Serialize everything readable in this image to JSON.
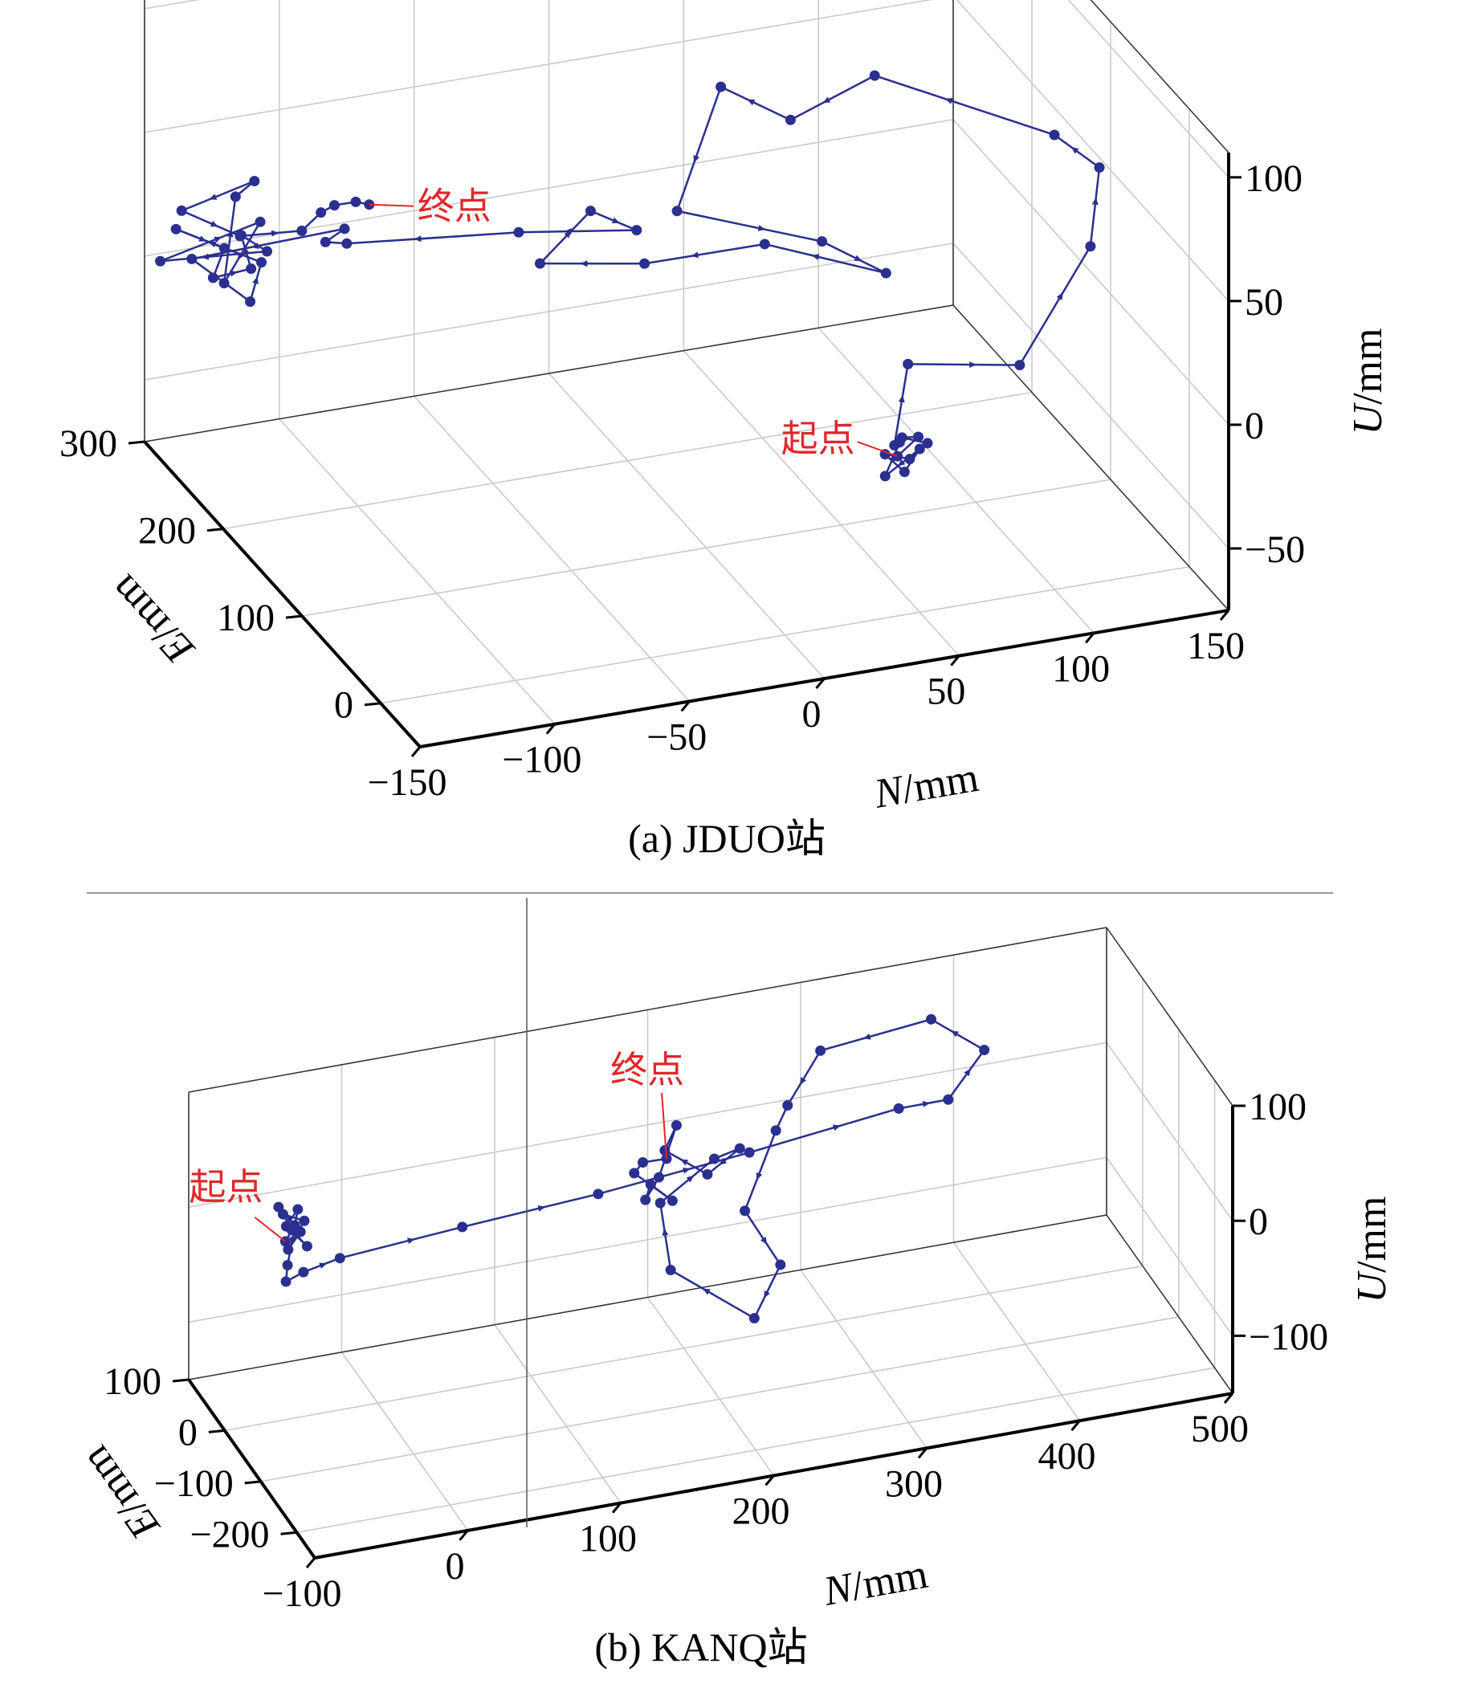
{
  "colors": {
    "series": "#2b2f8f",
    "annotation": "#e0262b",
    "grid": "#c8c8c8",
    "axis": "#000000",
    "divider": "#9a9a9a"
  },
  "chart_data": [
    {
      "type": "scatter",
      "mode": "3d-line",
      "caption": "(a) JDUO站",
      "axes": {
        "x": {
          "label_var": "N",
          "label_unit": "/mm",
          "range": [
            -150,
            150
          ],
          "ticks": [
            -150,
            -100,
            -50,
            0,
            50,
            100,
            150
          ],
          "tick_labels": [
            "−150",
            "−100",
            "−50",
            "0",
            "50",
            "100",
            "150"
          ]
        },
        "y": {
          "label_var": "E",
          "label_unit": "/mm",
          "range": [
            -50,
            300
          ],
          "ticks": [
            0,
            100,
            200,
            300
          ],
          "tick_labels": [
            "0",
            "100",
            "200",
            "300"
          ]
        },
        "z": {
          "label_var": "U",
          "label_unit": "/mm",
          "range": [
            -75,
            110
          ],
          "ticks": [
            -50,
            0,
            50,
            100
          ],
          "tick_labels": [
            "−50",
            "0",
            "50",
            "100"
          ]
        }
      },
      "grid": true,
      "annotations": [
        {
          "text": "起点",
          "point_index": 0
        },
        {
          "text": "终点",
          "point_index": -1
        }
      ],
      "points": [
        [
          40,
          -6,
          -8
        ],
        [
          48,
          -5,
          -2
        ],
        [
          44,
          2,
          -4
        ],
        [
          52,
          -3,
          -6
        ],
        [
          46,
          -1,
          -12
        ],
        [
          38,
          3,
          -10
        ],
        [
          42,
          -8,
          -14
        ],
        [
          50,
          0,
          -9
        ],
        [
          36,
          -4,
          -16
        ],
        [
          44,
          5,
          -7
        ],
        [
          40,
          -2,
          -5
        ],
        [
          50,
          15,
          20
        ],
        [
          90,
          10,
          14
        ],
        [
          125,
          40,
          45
        ],
        [
          140,
          80,
          60
        ],
        [
          135,
          120,
          60
        ],
        [
          80,
          160,
          80
        ],
        [
          40,
          130,
          80
        ],
        [
          20,
          150,
          90
        ],
        [
          -5,
          120,
          55
        ],
        [
          40,
          90,
          45
        ],
        [
          55,
          60,
          40
        ],
        [
          10,
          60,
          60
        ],
        [
          -20,
          110,
          40
        ],
        [
          -50,
          140,
          35
        ],
        [
          -40,
          110,
          65
        ],
        [
          -20,
          120,
          50
        ],
        [
          -55,
          150,
          45
        ],
        [
          -110,
          180,
          40
        ],
        [
          -115,
          190,
          38
        ],
        [
          -105,
          200,
          38
        ],
        [
          -150,
          240,
          20
        ],
        [
          -140,
          200,
          15
        ],
        [
          -130,
          220,
          22
        ],
        [
          -150,
          260,
          25
        ],
        [
          -135,
          250,
          18
        ],
        [
          -145,
          230,
          15
        ],
        [
          -128,
          240,
          12
        ],
        [
          -120,
          280,
          10
        ],
        [
          -125,
          230,
          22
        ],
        [
          -150,
          280,
          5
        ],
        [
          -110,
          290,
          10
        ],
        [
          -138,
          240,
          8
        ],
        [
          -125,
          270,
          30
        ],
        [
          -118,
          270,
          35
        ],
        [
          -145,
          270,
          28
        ],
        [
          -135,
          230,
          30
        ],
        [
          -115,
          220,
          32
        ],
        [
          -105,
          230,
          34
        ],
        [
          -100,
          230,
          36
        ],
        [
          -95,
          220,
          40
        ],
        [
          -90,
          220,
          38
        ]
      ]
    },
    {
      "type": "scatter",
      "mode": "3d-line",
      "caption": "(b) KANQ站",
      "axes": {
        "x": {
          "label_var": "N",
          "label_unit": "/mm",
          "range": [
            -100,
            500
          ],
          "ticks": [
            -100,
            0,
            100,
            200,
            300,
            400,
            500
          ],
          "tick_labels": [
            "−100",
            "0",
            "100",
            "200",
            "300",
            "400",
            "500"
          ]
        },
        "y": {
          "label_var": "E",
          "label_unit": "/mm",
          "range": [
            -250,
            100
          ],
          "ticks": [
            -200,
            -100,
            0,
            100
          ],
          "tick_labels": [
            "−200",
            "−100",
            "0",
            "100"
          ]
        },
        "z": {
          "label_var": "U",
          "label_unit": "/mm",
          "range": [
            -150,
            100
          ],
          "ticks": [
            -100,
            0,
            100
          ],
          "tick_labels": [
            "−100",
            "0",
            "100"
          ]
        }
      },
      "grid": true,
      "annotations": [
        {
          "text": "起点",
          "point_index": 0
        },
        {
          "text": "终点",
          "point_index": -1
        }
      ],
      "points": [
        [
          -58,
          10,
          0
        ],
        [
          -53,
          5,
          15
        ],
        [
          -62,
          12,
          30
        ],
        [
          -50,
          2,
          10
        ],
        [
          -55,
          15,
          -10
        ],
        [
          -48,
          0,
          20
        ],
        [
          -60,
          8,
          25
        ],
        [
          -52,
          18,
          5
        ],
        [
          -45,
          5,
          -5
        ],
        [
          -57,
          12,
          12
        ],
        [
          -48,
          18,
          22
        ],
        [
          -58,
          4,
          -18
        ],
        [
          -60,
          0,
          -30
        ],
        [
          -45,
          15,
          -32
        ],
        [
          -20,
          20,
          -28
        ],
        [
          60,
          20,
          -20
        ],
        [
          150,
          25,
          -15
        ],
        [
          250,
          30,
          -5
        ],
        [
          350,
          40,
          5
        ],
        [
          380,
          30,
          10
        ],
        [
          400,
          15,
          55
        ],
        [
          370,
          35,
          80
        ],
        [
          300,
          45,
          65
        ],
        [
          275,
          30,
          30
        ],
        [
          265,
          20,
          15
        ],
        [
          240,
          0,
          -40
        ],
        [
          255,
          -35,
          -75
        ],
        [
          225,
          -90,
          -90
        ],
        [
          175,
          -70,
          -45
        ],
        [
          180,
          -20,
          -10
        ],
        [
          220,
          0,
          10
        ],
        [
          232,
          -20,
          25
        ],
        [
          212,
          -15,
          5
        ],
        [
          190,
          10,
          20
        ],
        [
          200,
          20,
          35
        ],
        [
          185,
          5,
          0
        ],
        [
          175,
          0,
          -15
        ],
        [
          182,
          15,
          -10
        ],
        [
          195,
          10,
          -25
        ],
        [
          170,
          10,
          5
        ],
        [
          178,
          20,
          8
        ],
        [
          190,
          5,
          15
        ]
      ]
    }
  ]
}
